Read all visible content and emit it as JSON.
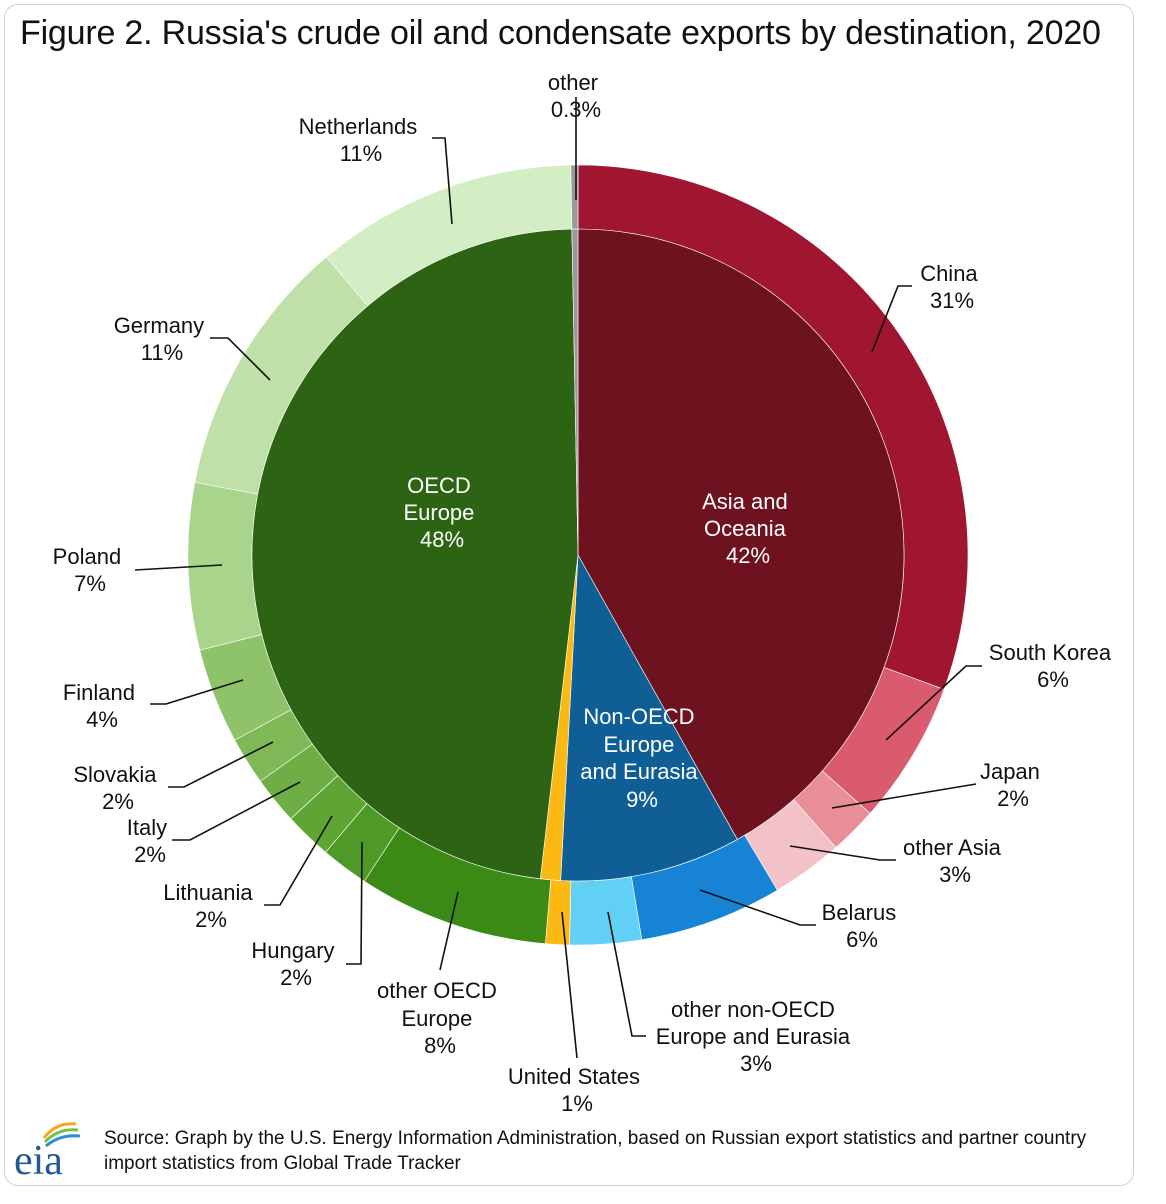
{
  "title": "Figure 2. Russia's crude oil and condensate exports by destination, 2020",
  "source": "Source: Graph by the U.S. Energy Information Administration, based on Russian export statistics and partner country import statistics from Global Trade Tracker",
  "logo_text": "eia",
  "chart_data": {
    "type": "pie",
    "subtype": "nested-donut",
    "inner": [
      {
        "name": "Asia and Oceania",
        "value": 42,
        "label": "42%",
        "color": "#6e1220"
      },
      {
        "name": "Non-OECD Europe and Eurasia",
        "value": 9,
        "label": "9%",
        "color": "#0f5e96"
      },
      {
        "name": "United States",
        "value": 1,
        "label": "1%",
        "color": "#fdb913"
      },
      {
        "name": "OECD Europe",
        "value": 48,
        "label": "48%",
        "color": "#2d6414"
      },
      {
        "name": "other",
        "value": 0.3,
        "label": "0.3%",
        "color": "#999999"
      }
    ],
    "outer": [
      {
        "name": "China",
        "value": 31,
        "label": "31%",
        "color": "#a01530",
        "group": "Asia and Oceania"
      },
      {
        "name": "South Korea",
        "value": 6,
        "label": "6%",
        "color": "#d95b6d",
        "group": "Asia and Oceania"
      },
      {
        "name": "Japan",
        "value": 2,
        "label": "2%",
        "color": "#e88e98",
        "group": "Asia and Oceania"
      },
      {
        "name": "other Asia",
        "value": 3,
        "label": "3%",
        "color": "#f2c2c8",
        "group": "Asia and Oceania"
      },
      {
        "name": "Belarus",
        "value": 6,
        "label": "6%",
        "color": "#1683d4",
        "group": "Non-OECD Europe and Eurasia"
      },
      {
        "name": "other non-OECD Europe and Eurasia",
        "value": 3,
        "label": "3%",
        "color": "#62d0f5",
        "group": "Non-OECD Europe and Eurasia"
      },
      {
        "name": "United States",
        "value": 1,
        "label": "1%",
        "color": "#fdb913",
        "group": "United States"
      },
      {
        "name": "other OECD Europe",
        "value": 8,
        "label": "8%",
        "color": "#3b8a15",
        "group": "OECD Europe"
      },
      {
        "name": "Hungary",
        "value": 2,
        "label": "2%",
        "color": "#4f9a26",
        "group": "OECD Europe"
      },
      {
        "name": "Lithuania",
        "value": 2,
        "label": "2%",
        "color": "#5fa533",
        "group": "OECD Europe"
      },
      {
        "name": "Italy",
        "value": 2,
        "label": "2%",
        "color": "#6eae44",
        "group": "OECD Europe"
      },
      {
        "name": "Slovakia",
        "value": 2,
        "label": "2%",
        "color": "#7eb857",
        "group": "OECD Europe"
      },
      {
        "name": "Finland",
        "value": 4,
        "label": "4%",
        "color": "#8fc36a",
        "group": "OECD Europe"
      },
      {
        "name": "Poland",
        "value": 7,
        "label": "7%",
        "color": "#a9d48c",
        "group": "OECD Europe"
      },
      {
        "name": "Germany",
        "value": 11,
        "label": "11%",
        "color": "#bfe0a8",
        "group": "OECD Europe"
      },
      {
        "name": "Netherlands",
        "value": 11,
        "label": "11%",
        "color": "#d3edc4",
        "group": "OECD Europe"
      },
      {
        "name": "other",
        "value": 0.3,
        "label": "0.3%",
        "color": "#999999",
        "group": "other"
      }
    ],
    "inner_labels": {
      "asia": [
        "Asia and",
        "Oceania",
        "42%"
      ],
      "nonoecd": [
        "Non-OECD",
        "Europe",
        "and Eurasia",
        "9%"
      ],
      "oecd": [
        "OECD",
        "Europe",
        "48%"
      ]
    },
    "outer_labels": {
      "other": [
        "other",
        "0.3%"
      ],
      "netherlands": [
        "Netherlands",
        "11%"
      ],
      "china": [
        "China",
        "31%"
      ],
      "germany": [
        "Germany",
        "11%"
      ],
      "south_korea": [
        "South Korea",
        "6%"
      ],
      "poland": [
        "Poland",
        "7%"
      ],
      "japan": [
        "Japan",
        "2%"
      ],
      "finland": [
        "Finland",
        "4%"
      ],
      "slovakia": [
        "Slovakia",
        "2%"
      ],
      "other_asia": [
        "other Asia",
        "3%"
      ],
      "italy": [
        "Italy",
        "2%"
      ],
      "lithuania": [
        "Lithuania",
        "2%"
      ],
      "belarus": [
        "Belarus",
        "6%"
      ],
      "hungary": [
        "Hungary",
        "2%"
      ],
      "other_oecd": [
        "other OECD",
        "Europe",
        "8%"
      ],
      "other_nonoecd": [
        "other non-OECD",
        "Europe and Eurasia",
        "3%"
      ],
      "united_states": [
        "United States",
        "1%"
      ]
    }
  }
}
